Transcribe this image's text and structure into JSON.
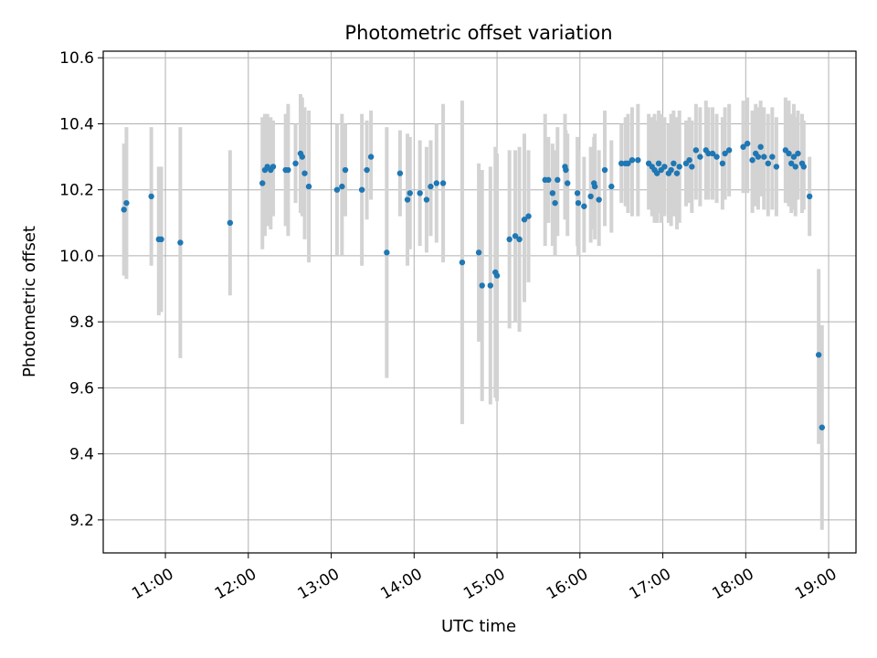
{
  "chart_data": {
    "type": "scatter",
    "title": "Photometric offset variation",
    "xlabel": "UTC time",
    "ylabel": "Photometric offset",
    "x_units": "hours UTC",
    "xlim": [
      10.25,
      19.33
    ],
    "ylim": [
      9.1,
      10.62
    ],
    "grid": true,
    "x_ticks": [
      11,
      12,
      13,
      14,
      15,
      16,
      17,
      18,
      19
    ],
    "x_tick_labels": [
      "11:00",
      "12:00",
      "13:00",
      "14:00",
      "15:00",
      "16:00",
      "17:00",
      "18:00",
      "19:00"
    ],
    "y_ticks": [
      9.2,
      9.4,
      9.6,
      9.8,
      10.0,
      10.2,
      10.4,
      10.6
    ],
    "y_tick_labels": [
      "9.2",
      "9.4",
      "9.6",
      "9.8",
      "10.0",
      "10.2",
      "10.4",
      "10.6"
    ],
    "colors": {
      "point": "#1f77b4",
      "errorbar": "#d3d3d3",
      "grid": "#b0b0b0"
    },
    "series": [
      {
        "points": [
          [
            10.5,
            10.14,
            10.34,
            9.94
          ],
          [
            10.53,
            10.16,
            10.39,
            9.93
          ],
          [
            10.83,
            10.18,
            10.39,
            9.97
          ],
          [
            10.92,
            10.05,
            10.27,
            9.82
          ],
          [
            10.95,
            10.05,
            10.27,
            9.83
          ],
          [
            11.18,
            10.04,
            10.39,
            9.69
          ],
          [
            11.78,
            10.1,
            10.32,
            9.88
          ],
          [
            12.17,
            10.22,
            10.42,
            10.02
          ],
          [
            12.2,
            10.26,
            10.43,
            10.06
          ],
          [
            12.23,
            10.27,
            10.43,
            10.09
          ],
          [
            12.27,
            10.26,
            10.42,
            10.08
          ],
          [
            12.3,
            10.27,
            10.41,
            10.12
          ],
          [
            12.45,
            10.26,
            10.43,
            10.09
          ],
          [
            12.48,
            10.26,
            10.46,
            10.06
          ],
          [
            12.57,
            10.28,
            10.4,
            10.16
          ],
          [
            12.63,
            10.31,
            10.49,
            10.13
          ],
          [
            12.65,
            10.3,
            10.48,
            10.12
          ],
          [
            12.68,
            10.25,
            10.45,
            10.05
          ],
          [
            12.73,
            10.21,
            10.44,
            9.98
          ],
          [
            13.07,
            10.2,
            10.4,
            10.0
          ],
          [
            13.13,
            10.21,
            10.43,
            10.0
          ],
          [
            13.17,
            10.26,
            10.4,
            10.12
          ],
          [
            13.37,
            10.2,
            10.43,
            9.97
          ],
          [
            13.43,
            10.26,
            10.41,
            10.11
          ],
          [
            13.48,
            10.3,
            10.44,
            10.17
          ],
          [
            13.67,
            10.01,
            10.39,
            9.63
          ],
          [
            13.83,
            10.25,
            10.38,
            10.12
          ],
          [
            13.92,
            10.17,
            10.37,
            9.97
          ],
          [
            13.95,
            10.19,
            10.36,
            10.02
          ],
          [
            14.07,
            10.19,
            10.35,
            10.03
          ],
          [
            14.15,
            10.17,
            10.33,
            10.01
          ],
          [
            14.2,
            10.21,
            10.35,
            10.06
          ],
          [
            14.27,
            10.22,
            10.4,
            10.04
          ],
          [
            14.35,
            10.22,
            10.46,
            9.98
          ],
          [
            14.58,
            9.98,
            10.47,
            9.49
          ],
          [
            14.78,
            10.01,
            10.28,
            9.74
          ],
          [
            14.82,
            9.91,
            10.26,
            9.56
          ],
          [
            14.92,
            9.91,
            10.27,
            9.55
          ],
          [
            14.98,
            9.95,
            10.33,
            9.57
          ],
          [
            15.0,
            9.94,
            10.31,
            9.56
          ],
          [
            15.15,
            10.05,
            10.32,
            9.78
          ],
          [
            15.22,
            10.06,
            10.32,
            9.8
          ],
          [
            15.27,
            10.05,
            10.33,
            9.77
          ],
          [
            15.33,
            10.11,
            10.37,
            9.86
          ],
          [
            15.38,
            10.12,
            10.32,
            9.92
          ],
          [
            15.58,
            10.23,
            10.43,
            10.03
          ],
          [
            15.62,
            10.23,
            10.36,
            10.1
          ],
          [
            15.67,
            10.19,
            10.34,
            10.03
          ],
          [
            15.7,
            10.16,
            10.32,
            10.0
          ],
          [
            15.73,
            10.23,
            10.39,
            10.06
          ],
          [
            15.82,
            10.27,
            10.43,
            10.11
          ],
          [
            15.83,
            10.26,
            10.38,
            10.13
          ],
          [
            15.85,
            10.22,
            10.37,
            10.06
          ],
          [
            15.97,
            10.19,
            10.36,
            10.03
          ],
          [
            15.98,
            10.16,
            10.32,
            10.0
          ],
          [
            16.05,
            10.15,
            10.3,
            10.01
          ],
          [
            16.13,
            10.18,
            10.33,
            10.04
          ],
          [
            16.17,
            10.22,
            10.36,
            10.08
          ],
          [
            16.18,
            10.21,
            10.37,
            10.05
          ],
          [
            16.23,
            10.17,
            10.32,
            10.03
          ],
          [
            16.3,
            10.26,
            10.44,
            10.09
          ],
          [
            16.38,
            10.21,
            10.35,
            10.07
          ],
          [
            16.5,
            10.28,
            10.4,
            10.16
          ],
          [
            16.55,
            10.28,
            10.42,
            10.15
          ],
          [
            16.58,
            10.28,
            10.43,
            10.13
          ],
          [
            16.63,
            10.29,
            10.45,
            10.12
          ],
          [
            16.7,
            10.29,
            10.46,
            10.12
          ],
          [
            16.83,
            10.28,
            10.43,
            10.14
          ],
          [
            16.87,
            10.27,
            10.42,
            10.12
          ],
          [
            16.9,
            10.26,
            10.43,
            10.1
          ],
          [
            16.93,
            10.25,
            10.41,
            10.1
          ],
          [
            16.95,
            10.28,
            10.44,
            10.13
          ],
          [
            16.98,
            10.26,
            10.43,
            10.1
          ],
          [
            17.02,
            10.27,
            10.42,
            10.12
          ],
          [
            17.07,
            10.25,
            10.4,
            10.1
          ],
          [
            17.1,
            10.26,
            10.43,
            10.09
          ],
          [
            17.13,
            10.28,
            10.44,
            10.12
          ],
          [
            17.17,
            10.25,
            10.42,
            10.08
          ],
          [
            17.2,
            10.27,
            10.44,
            10.1
          ],
          [
            17.28,
            10.28,
            10.41,
            10.15
          ],
          [
            17.32,
            10.29,
            10.42,
            10.16
          ],
          [
            17.35,
            10.27,
            10.41,
            10.13
          ],
          [
            17.4,
            10.32,
            10.46,
            10.17
          ],
          [
            17.45,
            10.3,
            10.45,
            10.15
          ],
          [
            17.52,
            10.32,
            10.47,
            10.17
          ],
          [
            17.55,
            10.31,
            10.45,
            10.17
          ],
          [
            17.6,
            10.31,
            10.45,
            10.17
          ],
          [
            17.65,
            10.3,
            10.43,
            10.16
          ],
          [
            17.72,
            10.28,
            10.42,
            10.14
          ],
          [
            17.75,
            10.31,
            10.45,
            10.17
          ],
          [
            17.8,
            10.32,
            10.46,
            10.18
          ],
          [
            17.97,
            10.33,
            10.47,
            10.19
          ],
          [
            18.02,
            10.34,
            10.48,
            10.19
          ],
          [
            18.08,
            10.29,
            10.44,
            10.13
          ],
          [
            18.12,
            10.31,
            10.46,
            10.15
          ],
          [
            18.15,
            10.3,
            10.45,
            10.14
          ],
          [
            18.18,
            10.33,
            10.47,
            10.18
          ],
          [
            18.22,
            10.3,
            10.45,
            10.14
          ],
          [
            18.27,
            10.28,
            10.43,
            10.12
          ],
          [
            18.32,
            10.3,
            10.45,
            10.14
          ],
          [
            18.37,
            10.27,
            10.42,
            10.12
          ],
          [
            18.48,
            10.32,
            10.48,
            10.16
          ],
          [
            18.52,
            10.31,
            10.47,
            10.15
          ],
          [
            18.55,
            10.28,
            10.43,
            10.13
          ],
          [
            18.58,
            10.3,
            10.46,
            10.14
          ],
          [
            18.6,
            10.27,
            10.42,
            10.12
          ],
          [
            18.63,
            10.31,
            10.44,
            10.17
          ],
          [
            18.68,
            10.28,
            10.43,
            10.13
          ],
          [
            18.7,
            10.27,
            10.41,
            10.14
          ],
          [
            18.77,
            10.18,
            10.3,
            10.06
          ],
          [
            18.88,
            9.7,
            9.96,
            9.43
          ],
          [
            18.92,
            9.48,
            9.79,
            9.17
          ]
        ]
      }
    ]
  }
}
